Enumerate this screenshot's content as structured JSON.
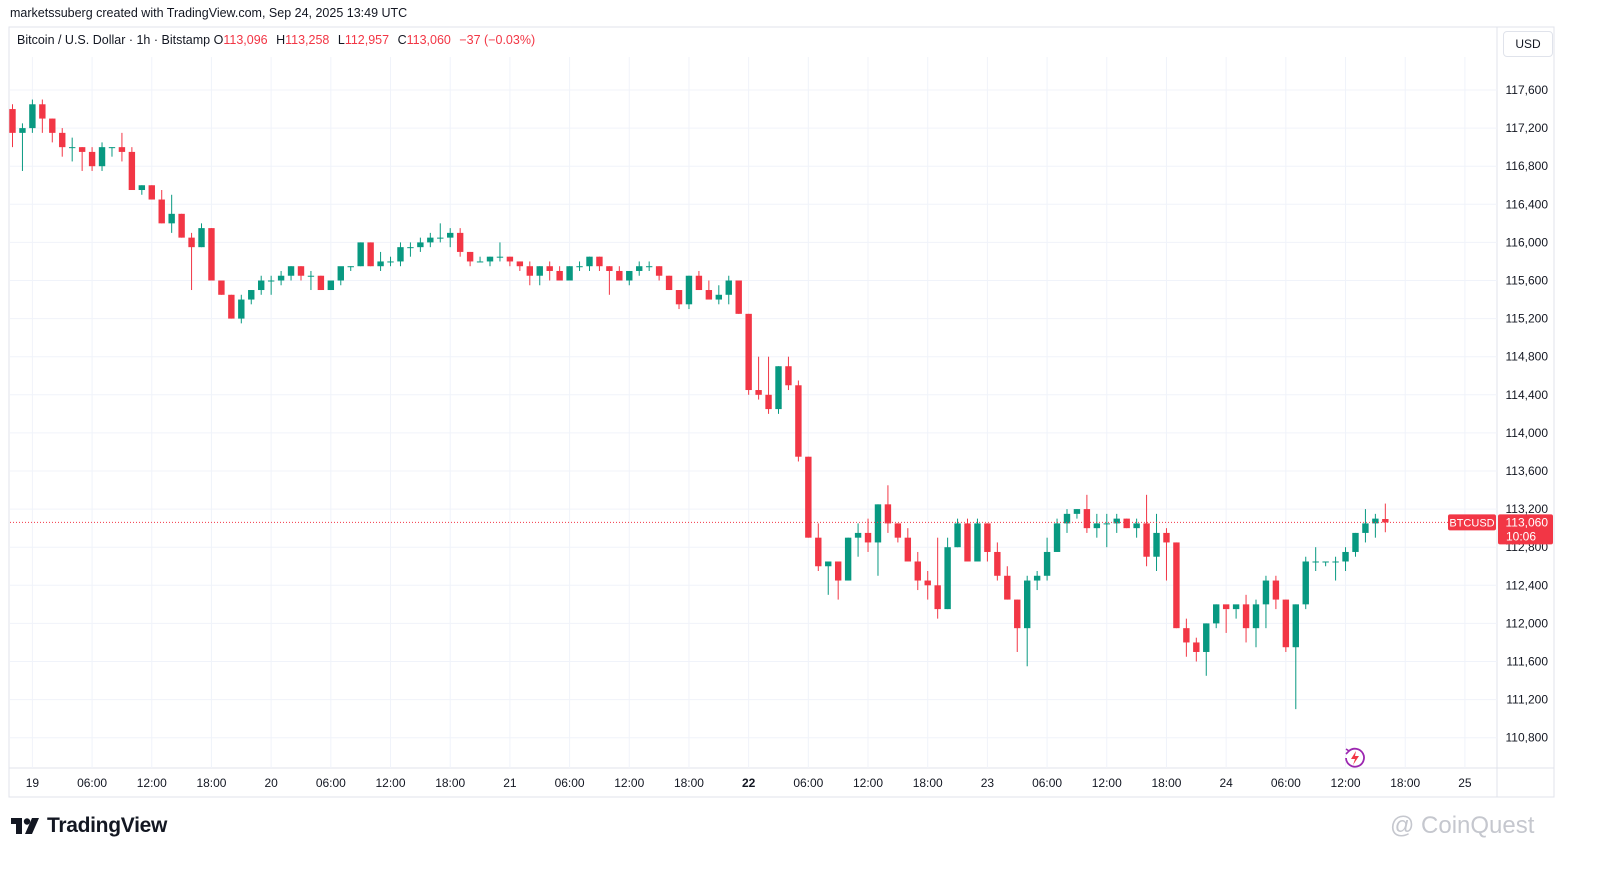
{
  "header": {
    "credit": "marketssuberg created with TradingView.com, Sep 24, 2025 13:49 UTC"
  },
  "legend": {
    "symbol": "Bitcoin / U.S. Dollar · 1h · Bitstamp",
    "open_label": "O",
    "open": "113,096",
    "high_label": "H",
    "high": "113,258",
    "low_label": "L",
    "low": "112,957",
    "close_label": "C",
    "close": "113,060",
    "change": "−37 (−0.03%)"
  },
  "currency": "USD",
  "branding": {
    "logo_text": "TradingView",
    "watermark": "@ CoinQuest"
  },
  "colors": {
    "up": "#089981",
    "down": "#f23645",
    "grid": "#f0f3fa",
    "text": "#131722"
  },
  "chart_data": {
    "type": "candlestick",
    "symbol_tag": "BTCUSD",
    "last_price": "113,060",
    "countdown": "10:06",
    "last_value": 113060,
    "ylim": [
      110600,
      117850
    ],
    "y_ticks": [
      {
        "value": 117600,
        "label": "117,600"
      },
      {
        "value": 117200,
        "label": "117,200"
      },
      {
        "value": 116800,
        "label": "116,800"
      },
      {
        "value": 116400,
        "label": "116,400"
      },
      {
        "value": 116000,
        "label": "116,000"
      },
      {
        "value": 115600,
        "label": "115,600"
      },
      {
        "value": 115200,
        "label": "115,200"
      },
      {
        "value": 114800,
        "label": "114,800"
      },
      {
        "value": 114400,
        "label": "114,400"
      },
      {
        "value": 114000,
        "label": "114,000"
      },
      {
        "value": 113600,
        "label": "113,600"
      },
      {
        "value": 113200,
        "label": "113,200"
      },
      {
        "value": 112800,
        "label": "112,800"
      },
      {
        "value": 112400,
        "label": "112,400"
      },
      {
        "value": 112000,
        "label": "112,000"
      },
      {
        "value": 111600,
        "label": "111,600"
      },
      {
        "value": 111200,
        "label": "111,200"
      },
      {
        "value": 110800,
        "label": "110,800"
      }
    ],
    "x_ticks": [
      {
        "index": 2,
        "label": "19",
        "bold": false
      },
      {
        "index": 8,
        "label": "06:00",
        "bold": false
      },
      {
        "index": 14,
        "label": "12:00",
        "bold": false
      },
      {
        "index": 20,
        "label": "18:00",
        "bold": false
      },
      {
        "index": 26,
        "label": "20",
        "bold": false
      },
      {
        "index": 32,
        "label": "06:00",
        "bold": false
      },
      {
        "index": 38,
        "label": "12:00",
        "bold": false
      },
      {
        "index": 44,
        "label": "18:00",
        "bold": false
      },
      {
        "index": 50,
        "label": "21",
        "bold": false
      },
      {
        "index": 56,
        "label": "06:00",
        "bold": false
      },
      {
        "index": 62,
        "label": "12:00",
        "bold": false
      },
      {
        "index": 68,
        "label": "18:00",
        "bold": false
      },
      {
        "index": 74,
        "label": "22",
        "bold": true
      },
      {
        "index": 80,
        "label": "06:00",
        "bold": false
      },
      {
        "index": 86,
        "label": "12:00",
        "bold": false
      },
      {
        "index": 92,
        "label": "18:00",
        "bold": false
      },
      {
        "index": 98,
        "label": "23",
        "bold": false
      },
      {
        "index": 104,
        "label": "06:00",
        "bold": false
      },
      {
        "index": 110,
        "label": "12:00",
        "bold": false
      },
      {
        "index": 116,
        "label": "18:00",
        "bold": false
      },
      {
        "index": 122,
        "label": "24",
        "bold": false
      },
      {
        "index": 128,
        "label": "06:00",
        "bold": false
      },
      {
        "index": 134,
        "label": "12:00",
        "bold": false
      },
      {
        "index": 140,
        "label": "18:00",
        "bold": false
      },
      {
        "index": 146,
        "label": "25",
        "bold": false
      }
    ],
    "candles": [
      [
        117400,
        117450,
        117000,
        117150
      ],
      [
        117150,
        117250,
        116750,
        117200
      ],
      [
        117200,
        117500,
        117150,
        117450
      ],
      [
        117450,
        117500,
        117150,
        117300
      ],
      [
        117300,
        117300,
        117050,
        117150
      ],
      [
        117150,
        117200,
        116900,
        117000
      ],
      [
        117000,
        117100,
        116850,
        117000
      ],
      [
        117000,
        117000,
        116750,
        116950
      ],
      [
        116950,
        117000,
        116750,
        116800
      ],
      [
        116800,
        117050,
        116750,
        117000
      ],
      [
        117000,
        117000,
        116900,
        117000
      ],
      [
        117000,
        117150,
        116850,
        116950
      ],
      [
        116950,
        117000,
        116550,
        116550
      ],
      [
        116550,
        116600,
        116500,
        116600
      ],
      [
        116600,
        116600,
        116450,
        116450
      ],
      [
        116450,
        116550,
        116200,
        116200
      ],
      [
        116200,
        116500,
        116100,
        116300
      ],
      [
        116300,
        116300,
        116050,
        116050
      ],
      [
        116050,
        116100,
        115500,
        115950
      ],
      [
        115950,
        116200,
        115950,
        116150
      ],
      [
        116150,
        116150,
        115600,
        115600
      ],
      [
        115600,
        115600,
        115450,
        115450
      ],
      [
        115450,
        115450,
        115200,
        115200
      ],
      [
        115200,
        115450,
        115150,
        115400
      ],
      [
        115400,
        115500,
        115350,
        115500
      ],
      [
        115500,
        115650,
        115450,
        115600
      ],
      [
        115600,
        115650,
        115450,
        115600
      ],
      [
        115600,
        115700,
        115550,
        115650
      ],
      [
        115650,
        115750,
        115600,
        115750
      ],
      [
        115750,
        115750,
        115600,
        115650
      ],
      [
        115650,
        115700,
        115500,
        115650
      ],
      [
        115650,
        115650,
        115500,
        115500
      ],
      [
        115500,
        115600,
        115500,
        115600
      ],
      [
        115600,
        115700,
        115550,
        115750
      ],
      [
        115750,
        115750,
        115700,
        115750
      ],
      [
        115750,
        116000,
        115750,
        116000
      ],
      [
        116000,
        116000,
        115750,
        115750
      ],
      [
        115750,
        115900,
        115700,
        115800
      ],
      [
        115800,
        115850,
        115750,
        115800
      ],
      [
        115800,
        116000,
        115750,
        115950
      ],
      [
        115950,
        116000,
        115850,
        115950
      ],
      [
        115950,
        116050,
        115900,
        116000
      ],
      [
        116000,
        116100,
        115950,
        116050
      ],
      [
        116050,
        116200,
        116000,
        116050
      ],
      [
        116050,
        116150,
        115950,
        116100
      ],
      [
        116100,
        116150,
        115850,
        115900
      ],
      [
        115900,
        115900,
        115750,
        115800
      ],
      [
        115800,
        115850,
        115800,
        115800
      ],
      [
        115800,
        115850,
        115750,
        115850
      ],
      [
        115850,
        116000,
        115800,
        115850
      ],
      [
        115850,
        115850,
        115750,
        115800
      ],
      [
        115800,
        115800,
        115700,
        115750
      ],
      [
        115750,
        115800,
        115550,
        115650
      ],
      [
        115650,
        115750,
        115550,
        115750
      ],
      [
        115750,
        115800,
        115600,
        115700
      ],
      [
        115700,
        115750,
        115600,
        115600
      ],
      [
        115600,
        115750,
        115600,
        115750
      ],
      [
        115750,
        115800,
        115700,
        115750
      ],
      [
        115750,
        115850,
        115700,
        115850
      ],
      [
        115850,
        115850,
        115700,
        115750
      ],
      [
        115750,
        115750,
        115450,
        115700
      ],
      [
        115700,
        115750,
        115600,
        115600
      ],
      [
        115600,
        115650,
        115550,
        115700
      ],
      [
        115700,
        115800,
        115650,
        115750
      ],
      [
        115750,
        115800,
        115700,
        115750
      ],
      [
        115750,
        115750,
        115600,
        115650
      ],
      [
        115650,
        115650,
        115500,
        115500
      ],
      [
        115500,
        115500,
        115300,
        115350
      ],
      [
        115350,
        115650,
        115300,
        115650
      ],
      [
        115650,
        115700,
        115500,
        115500
      ],
      [
        115500,
        115600,
        115450,
        115400
      ],
      [
        115400,
        115550,
        115350,
        115450
      ],
      [
        115450,
        115650,
        115350,
        115600
      ],
      [
        115600,
        115600,
        115250,
        115250
      ],
      [
        115250,
        115250,
        114400,
        114450
      ],
      [
        114450,
        114800,
        114350,
        114400
      ],
      [
        114400,
        114800,
        114200,
        114250
      ],
      [
        114250,
        114700,
        114200,
        114700
      ],
      [
        114700,
        114800,
        114450,
        114500
      ],
      [
        114500,
        114550,
        113700,
        113750
      ],
      [
        113750,
        113750,
        112900,
        112900
      ],
      [
        112900,
        113050,
        112550,
        112600
      ],
      [
        112600,
        112650,
        112300,
        112650
      ],
      [
        112650,
        112650,
        112250,
        112450
      ],
      [
        112450,
        112900,
        112450,
        112900
      ],
      [
        112900,
        113050,
        112700,
        112950
      ],
      [
        112950,
        113100,
        112750,
        112850
      ],
      [
        112850,
        113250,
        112500,
        113250
      ],
      [
        113250,
        113450,
        112950,
        113050
      ],
      [
        113050,
        113050,
        112850,
        112900
      ],
      [
        112900,
        113000,
        112650,
        112650
      ],
      [
        112650,
        112750,
        112350,
        112450
      ],
      [
        112450,
        112550,
        112250,
        112400
      ],
      [
        112400,
        112900,
        112050,
        112150
      ],
      [
        112150,
        112900,
        112150,
        112800
      ],
      [
        112800,
        113100,
        112800,
        113050
      ],
      [
        113050,
        113100,
        112650,
        112650
      ],
      [
        112650,
        113100,
        112650,
        113050
      ],
      [
        113050,
        113050,
        112650,
        112750
      ],
      [
        112750,
        112850,
        112450,
        112500
      ],
      [
        112500,
        112600,
        112250,
        112250
      ],
      [
        112250,
        112250,
        111700,
        111950
      ],
      [
        111950,
        112500,
        111550,
        112450
      ],
      [
        112450,
        112550,
        112350,
        112500
      ],
      [
        112500,
        112900,
        112450,
        112750
      ],
      [
        112750,
        113100,
        112750,
        113050
      ],
      [
        113050,
        113200,
        112950,
        113150
      ],
      [
        113150,
        113200,
        113100,
        113200
      ],
      [
        113200,
        113350,
        112950,
        113000
      ],
      [
        113000,
        113150,
        112900,
        113050
      ],
      [
        113050,
        113150,
        112800,
        113050
      ],
      [
        113050,
        113150,
        112950,
        113100
      ],
      [
        113100,
        113100,
        113000,
        113000
      ],
      [
        113000,
        113100,
        112900,
        113050
      ],
      [
        113050,
        113350,
        112600,
        112700
      ],
      [
        112700,
        113150,
        112550,
        112950
      ],
      [
        112950,
        113000,
        112450,
        112850
      ],
      [
        112850,
        112850,
        111950,
        111950
      ],
      [
        111950,
        112050,
        111650,
        111800
      ],
      [
        111800,
        111850,
        111600,
        111700
      ],
      [
        111700,
        112000,
        111450,
        112000
      ],
      [
        112000,
        112200,
        111950,
        112200
      ],
      [
        112200,
        112150,
        111900,
        112150
      ],
      [
        112150,
        112150,
        112050,
        112200
      ],
      [
        112200,
        112300,
        111800,
        111950
      ],
      [
        111950,
        112250,
        111750,
        112200
      ],
      [
        112200,
        112500,
        111950,
        112450
      ],
      [
        112450,
        112500,
        112150,
        112250
      ],
      [
        112250,
        112250,
        111700,
        111750
      ],
      [
        111750,
        112200,
        111100,
        112200
      ],
      [
        112200,
        112700,
        112150,
        112650
      ],
      [
        112650,
        112800,
        112550,
        112650
      ],
      [
        112650,
        112650,
        112600,
        112650
      ],
      [
        112650,
        112700,
        112450,
        112650
      ],
      [
        112650,
        112800,
        112550,
        112750
      ],
      [
        112750,
        112950,
        112700,
        112950
      ],
      [
        112950,
        113200,
        112850,
        113050
      ],
      [
        113050,
        113150,
        112900,
        113100
      ],
      [
        113096,
        113258,
        112957,
        113060
      ]
    ]
  }
}
